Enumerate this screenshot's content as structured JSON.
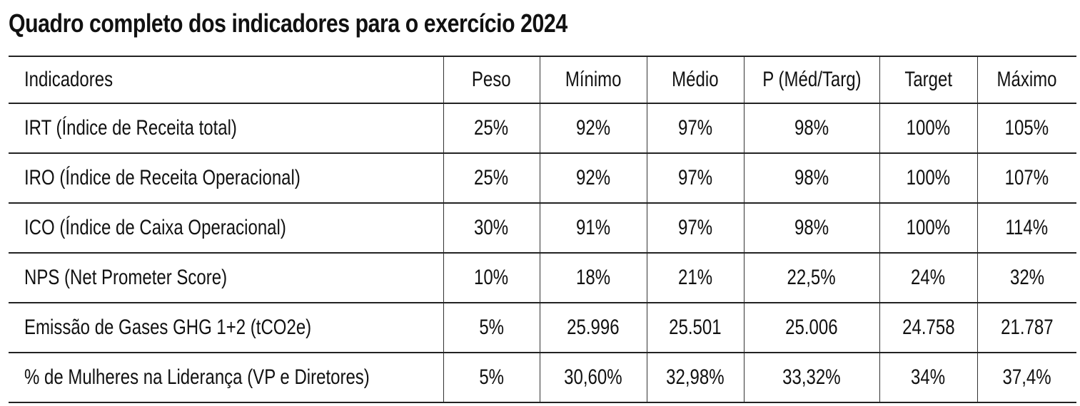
{
  "title": "Quadro completo dos indicadores para o exercício 2024",
  "table": {
    "headers": [
      "Indicadores",
      "Peso",
      "Mínimo",
      "Médio",
      "P (Méd/Targ)",
      "Target",
      "Máximo"
    ],
    "rows": [
      [
        "IRT (Índice de Receita total)",
        "25%",
        "92%",
        "97%",
        "98%",
        "100%",
        "105%"
      ],
      [
        "IRO (Índice de Receita Operacional)",
        "25%",
        "92%",
        "97%",
        "98%",
        "100%",
        "107%"
      ],
      [
        "ICO (Índice de Caixa Operacional)",
        "30%",
        "91%",
        "97%",
        "98%",
        "100%",
        "114%"
      ],
      [
        "NPS (Net Prometer Score)",
        "10%",
        "18%",
        "21%",
        "22,5%",
        "24%",
        "32%"
      ],
      [
        "Emissão de Gases GHG 1+2 (tCO2e)",
        "5%",
        "25.996",
        "25.501",
        "25.006",
        "24.758",
        "21.787"
      ],
      [
        "% de Mulheres na Liderança (VP e Diretores)",
        "5%",
        "30,60%",
        "32,98%",
        "33,32%",
        "34%",
        "37,4%"
      ]
    ]
  }
}
